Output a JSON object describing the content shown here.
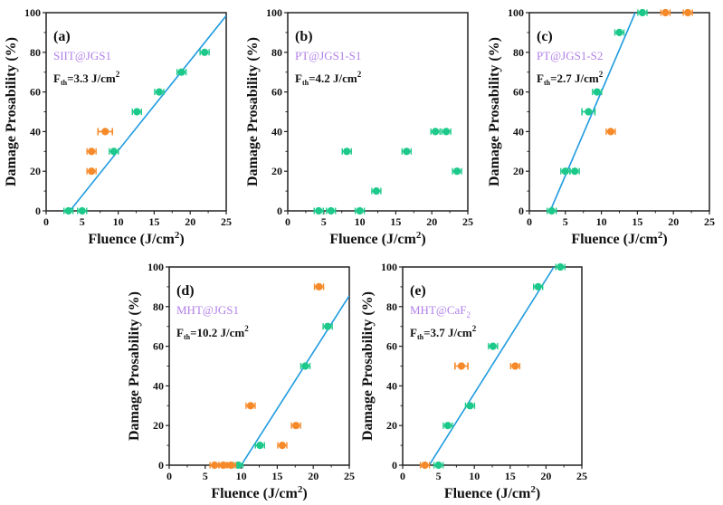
{
  "colors": {
    "orange": "#F68A2A",
    "green": "#1DC98A",
    "fit_line": "#1E9BE0",
    "sample_label": "#B07FE8",
    "axis": "#222222"
  },
  "chart_data": [
    {
      "type": "scatter",
      "panel": "(a)",
      "sample": "SIIT@JGS1",
      "fth_prefix": "F",
      "fth_sub": "th",
      "fth_value": "=3.3 J/cm",
      "fth_sup": "2",
      "xlabel": "Fluence (J/cm",
      "xlabel_sup": "2",
      "xlabel_end": ")",
      "ylabel": "Damage Prosability (%)",
      "xlim": [
        0,
        25
      ],
      "ylim": [
        0,
        100
      ],
      "xticks": [
        0,
        5,
        10,
        15,
        20,
        25
      ],
      "yticks": [
        0,
        20,
        40,
        60,
        80,
        100
      ],
      "green_points": [
        [
          3.1,
          0
        ],
        [
          5.0,
          0
        ],
        [
          9.4,
          30
        ],
        [
          12.6,
          50
        ],
        [
          15.7,
          60
        ],
        [
          18.8,
          70
        ],
        [
          22.0,
          80
        ]
      ],
      "orange_points": [
        [
          6.3,
          20
        ],
        [
          6.3,
          30
        ],
        [
          8.2,
          40,
          1.0
        ]
      ],
      "fit_line": [
        [
          3.3,
          0
        ],
        [
          25,
          98.5
        ]
      ]
    },
    {
      "type": "scatter",
      "panel": "(b)",
      "sample": "PT@JGS1-S1",
      "fth_prefix": "F",
      "fth_sub": "th",
      "fth_value": "=4.2 J/cm",
      "fth_sup": "2",
      "xlabel": "Fluence (J/cm",
      "xlabel_sup": "2",
      "xlabel_end": ")",
      "ylabel": "Damage Prosability (%)",
      "xlim": [
        0,
        25
      ],
      "ylim": [
        0,
        100
      ],
      "xticks": [
        0,
        5,
        10,
        15,
        20,
        25
      ],
      "yticks": [
        0,
        20,
        40,
        60,
        80,
        100
      ],
      "green_points": [
        [
          4.3,
          0
        ],
        [
          6.0,
          0
        ],
        [
          8.2,
          30
        ],
        [
          10.0,
          0
        ],
        [
          12.3,
          10
        ],
        [
          16.5,
          30
        ],
        [
          20.5,
          40
        ],
        [
          22.0,
          40
        ],
        [
          23.5,
          20
        ]
      ],
      "orange_points": [],
      "fit_line": null
    },
    {
      "type": "scatter",
      "panel": "(c)",
      "sample": "PT@JGS1-S2",
      "fth_prefix": "F",
      "fth_sub": "th",
      "fth_value": "=2.7 J/cm",
      "fth_sup": "2",
      "xlabel": "Fluence (J/cm",
      "xlabel_sup": "2",
      "xlabel_end": ")",
      "ylabel": "Damage Prosability (%)",
      "xlim": [
        0,
        25
      ],
      "ylim": [
        0,
        100
      ],
      "xticks": [
        0,
        5,
        10,
        15,
        20,
        25
      ],
      "yticks": [
        0,
        20,
        40,
        60,
        80,
        100
      ],
      "green_points": [
        [
          3.1,
          0
        ],
        [
          5.0,
          20
        ],
        [
          6.3,
          20
        ],
        [
          8.2,
          50,
          0.9
        ],
        [
          9.4,
          60
        ],
        [
          12.5,
          90
        ],
        [
          15.7,
          100
        ]
      ],
      "orange_points": [
        [
          11.3,
          40
        ],
        [
          18.9,
          100
        ],
        [
          22.0,
          100
        ]
      ],
      "fit_line": [
        [
          2.9,
          0
        ],
        [
          14.7,
          100
        ]
      ]
    },
    {
      "type": "scatter",
      "panel": "(d)",
      "sample": "MHT@JGS1",
      "fth_prefix": "F",
      "fth_sub": "th",
      "fth_value": "=10.2 J/cm",
      "fth_sup": "2",
      "xlabel": "Fluence (J/cm",
      "xlabel_sup": "2",
      "xlabel_end": ")",
      "ylabel": "Damage Prosability (%)",
      "xlim": [
        0,
        25
      ],
      "ylim": [
        0,
        100
      ],
      "xticks": [
        0,
        5,
        10,
        15,
        20,
        25
      ],
      "yticks": [
        0,
        20,
        40,
        60,
        80,
        100
      ],
      "green_points": [
        [
          9.6,
          0
        ],
        [
          12.6,
          10
        ],
        [
          18.9,
          50
        ],
        [
          22.0,
          70
        ]
      ],
      "orange_points": [
        [
          6.3,
          0
        ],
        [
          7.5,
          0
        ],
        [
          8.6,
          0
        ],
        [
          11.3,
          30
        ],
        [
          15.7,
          10
        ],
        [
          17.6,
          20
        ],
        [
          20.8,
          90
        ]
      ],
      "fit_line": [
        [
          10.0,
          0
        ],
        [
          25,
          85.5
        ]
      ]
    },
    {
      "type": "scatter",
      "panel": "(e)",
      "sample": "MHT@CaF",
      "sample_sub": "2",
      "fth_prefix": "F",
      "fth_sub": "th",
      "fth_value": "=3.7 J/cm",
      "fth_sup": "2",
      "xlabel": "Fluence (J/cm",
      "xlabel_sup": "2",
      "xlabel_end": ")",
      "ylabel": "Damage Prosability (%)",
      "xlim": [
        0,
        25
      ],
      "ylim": [
        0,
        100
      ],
      "xticks": [
        0,
        5,
        10,
        15,
        20,
        25
      ],
      "yticks": [
        0,
        20,
        40,
        60,
        80,
        100
      ],
      "green_points": [
        [
          5.0,
          0
        ],
        [
          6.3,
          20
        ],
        [
          9.4,
          30
        ],
        [
          12.6,
          60
        ],
        [
          18.9,
          90
        ],
        [
          22.0,
          100
        ]
      ],
      "orange_points": [
        [
          3.1,
          0
        ],
        [
          8.2,
          50,
          0.9
        ],
        [
          15.7,
          50
        ]
      ],
      "fit_line": [
        [
          3.7,
          0
        ],
        [
          21.1,
          100
        ]
      ]
    }
  ]
}
